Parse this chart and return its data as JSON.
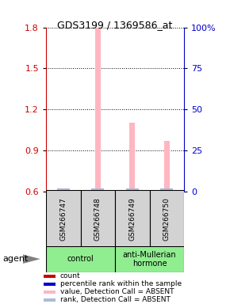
{
  "title": "GDS3199 / 1369586_at",
  "samples": [
    "GSM266747",
    "GSM266748",
    "GSM266749",
    "GSM266750"
  ],
  "ylim_left": [
    0.6,
    1.8
  ],
  "ylim_right": [
    0,
    100
  ],
  "yticks_left": [
    0.6,
    0.9,
    1.2,
    1.5,
    1.8
  ],
  "yticks_right": [
    0,
    25,
    50,
    75,
    100
  ],
  "ytick_labels_right": [
    "0",
    "25",
    "50",
    "75",
    "100%"
  ],
  "value_bars": [
    0.625,
    1.8,
    1.105,
    0.97
  ],
  "rank_bar_height": 0.025,
  "bar_width": 0.15,
  "bar_color_value": "#FFB6C1",
  "bar_color_rank": "#AABBD8",
  "bar_bottom": 0.6,
  "legend_items": [
    {
      "label": "count",
      "color": "#CC0000"
    },
    {
      "label": "percentile rank within the sample",
      "color": "#0000CC"
    },
    {
      "label": "value, Detection Call = ABSENT",
      "color": "#FFB6C1"
    },
    {
      "label": "rank, Detection Call = ABSENT",
      "color": "#AABBD8"
    }
  ],
  "agent_label": "agent",
  "left_axis_color": "#CC0000",
  "right_axis_color": "#0000CC",
  "sample_box_color": "#D3D3D3",
  "group_box_color": "#90EE90",
  "group_regions": [
    [
      0,
      2,
      "control"
    ],
    [
      2,
      4,
      "anti-Mullerian\nhormone"
    ]
  ]
}
